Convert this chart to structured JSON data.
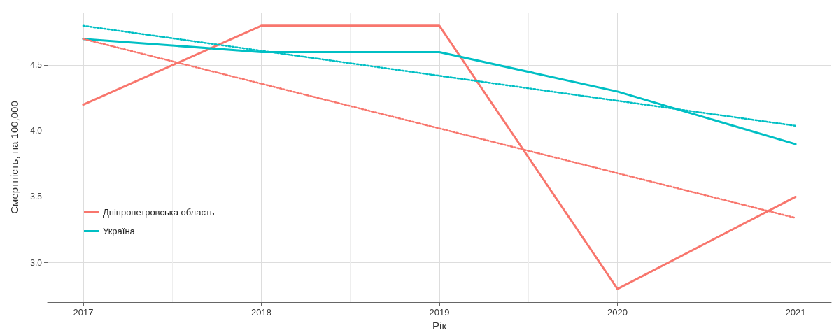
{
  "chart_data": {
    "type": "line",
    "xlabel": "Рік",
    "ylabel": "Смертність, на 100,000",
    "x": [
      2017,
      2018,
      2019,
      2020,
      2021
    ],
    "series": [
      {
        "name": "Дніпропетровська область",
        "color": "#f8766d",
        "values": [
          4.2,
          4.8,
          4.8,
          2.8,
          3.5
        ]
      },
      {
        "name": "Україна",
        "color": "#00bfc4",
        "values": [
          4.7,
          4.6,
          4.6,
          4.3,
          3.9
        ]
      },
      {
        "type": "line",
        "color": "#f8766d",
        "line_style": "dotted",
        "x": [
          2017,
          2018,
          2019,
          2020,
          2021
        ],
        "values": [
          4.7,
          4.36,
          4.02,
          3.68,
          3.34
        ]
      },
      {
        "type": "line",
        "color": "#00bfc4",
        "line_style": "dotted",
        "x": [
          2017,
          2018,
          2019,
          2020,
          2021
        ],
        "values": [
          4.8,
          4.61,
          4.42,
          4.23,
          4.04
        ]
      }
    ],
    "xlim": [
      2016.8,
      2021.2
    ],
    "xticks": [
      2017,
      2018,
      2019,
      2020,
      2021
    ],
    "ylim": [
      2.7,
      4.9
    ],
    "yticks": [
      {
        "value": 3,
        "label": "3.0"
      },
      3.5,
      {
        "value": 4,
        "label": "4.0"
      },
      4.5
    ],
    "grid": true,
    "legend": "left",
    "marker": "none",
    "line_style": "solid"
  }
}
